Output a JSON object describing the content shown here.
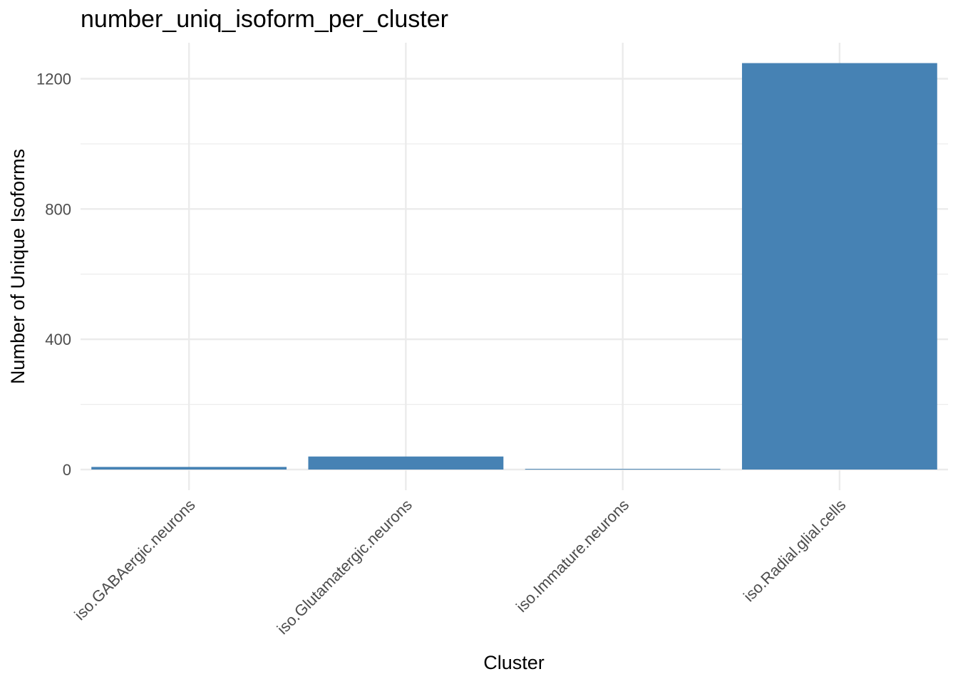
{
  "chart_data": {
    "type": "bar",
    "title": "number_uniq_isoform_per_cluster",
    "xlabel": "Cluster",
    "ylabel": "Number of Unique Isoforms",
    "categories": [
      "iso.GABAergic.neurons",
      "iso.Glutamatergic.neurons",
      "iso.Immature.neurons",
      "iso.Radial.glial.cells"
    ],
    "values": [
      8,
      40,
      2,
      1248
    ],
    "ylim": [
      0,
      1310
    ],
    "yticks": [
      0,
      400,
      800,
      1200
    ],
    "ytick_labels": [
      "0",
      "400",
      "800",
      "1200"
    ],
    "grid": true,
    "bar_color": "#4682b4",
    "x_tick_rotation_deg": 45
  }
}
